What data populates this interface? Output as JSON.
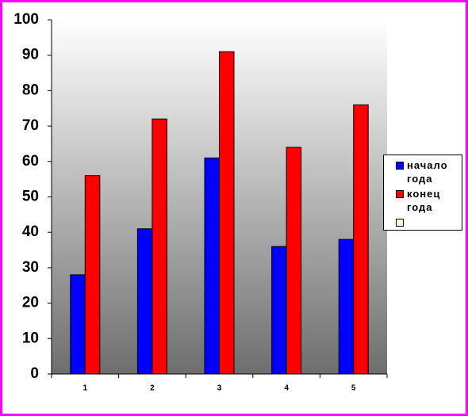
{
  "chart_data": {
    "type": "bar",
    "categories": [
      "1",
      "2",
      "3",
      "4",
      "5"
    ],
    "series": [
      {
        "name": "начало года",
        "color": "#0000ff",
        "values": [
          28,
          41,
          61,
          36,
          38
        ]
      },
      {
        "name": "конец года",
        "color": "#ff0000",
        "values": [
          56,
          72,
          91,
          64,
          76
        ]
      }
    ],
    "ylim": [
      0,
      100
    ],
    "yticks": [
      0,
      10,
      20,
      30,
      40,
      50,
      60,
      70,
      80,
      90,
      100
    ],
    "legend": "right"
  }
}
